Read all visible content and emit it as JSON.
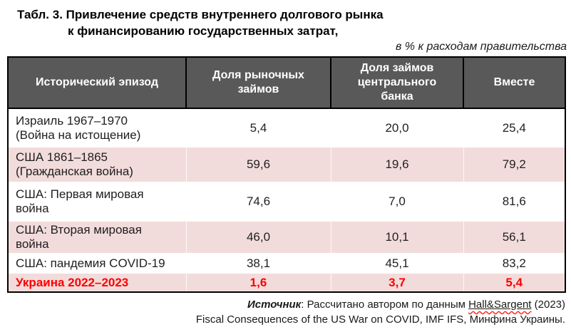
{
  "title": {
    "line1": "Табл. 3. Привлечение средств внутреннего долгового рынка",
    "line2": "к финансированию государственных затрат,",
    "unit_note": "в % к расходам правительства"
  },
  "table": {
    "headers": [
      "Исторический эпизод",
      "Доля рыночных\nзаймов",
      "Доля займов\nцентрального\nбанка",
      "Вместе"
    ],
    "rows": [
      {
        "episode": "Израиль 1967–1970\n(Война на истощение)",
        "market": "5,4",
        "central_bank": "20,0",
        "total": "25,4"
      },
      {
        "episode": "США 1861–1865\n(Гражданская война)",
        "market": "59,6",
        "central_bank": "19,6",
        "total": "79,2"
      },
      {
        "episode": "США: Первая мировая\nвойна",
        "market": "74,6",
        "central_bank": "7,0",
        "total": "81,6"
      },
      {
        "episode": "США: Вторая мировая\nвойна",
        "market": "46,0",
        "central_bank": "10,1",
        "total": "56,1"
      },
      {
        "episode": "США: пандемия COVID-19",
        "market": "38,1",
        "central_bank": "45,1",
        "total": "83,2"
      },
      {
        "episode": "Украина 2022–2023",
        "market": "1,6",
        "central_bank": "3,7",
        "total": "5,4"
      }
    ]
  },
  "source": {
    "label": "Источник",
    "line1_rest": ": Рассчитано автором по данным ",
    "reference": "Hall&Sargent",
    "line1_tail": " (2023)",
    "line2": "Fiscal Consequences of the US War on COVID, IMF IFS, Минфина Украины."
  },
  "colors": {
    "header_bg": "#595959",
    "header_text": "#ffffff",
    "row_pink": "#f2dcdb",
    "highlight_red": "#ff0000",
    "border_black": "#000000"
  }
}
